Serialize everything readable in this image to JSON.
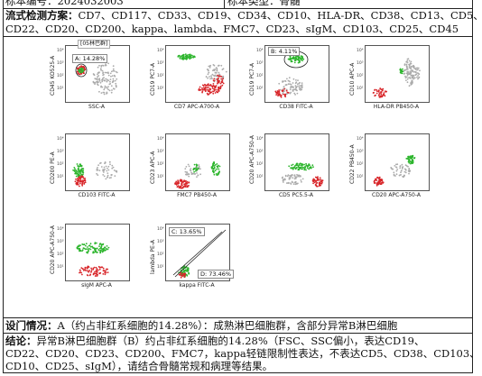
{
  "header": {
    "sample_no_label": "标本编号：",
    "sample_no_value": "2024032003",
    "sample_type_label": "标本类型：",
    "sample_type_value": "骨髓"
  },
  "markers": {
    "label": "流式检测方案：",
    "line1": "CD7、CD117、CD33、CD19、CD34、CD10、HLA-DR、CD38、CD13、CD5、",
    "line2": "CD22、CD20、CD200、kappa、lambda、FMC7、CD23、sIgM、CD103、CD25、CD45"
  },
  "plots": [
    {
      "id": "p1",
      "x": "SSC-A",
      "y": "CD45 KO525-A",
      "gate": "A: 14.28%",
      "tag": "[05林巴群]"
    },
    {
      "id": "p2",
      "x": "CD7 APC-A700-A",
      "y": "CD19 PC7-A"
    },
    {
      "id": "p3",
      "x": "CD38 FITC-A",
      "y": "CD19 PC7-A",
      "gate": "B: 4.11%"
    },
    {
      "id": "p4",
      "x": "HLA-DR PB450-A",
      "y": "CD10 APC-A"
    },
    {
      "id": "p5",
      "x": "CD103 FITC-A",
      "y": "CD200 PE-A"
    },
    {
      "id": "p6",
      "x": "FMC7 PB450-A",
      "y": "CD23 APC-A"
    },
    {
      "id": "p7",
      "x": "CD5 PC5.5-A",
      "y": "CD20 APC-A750-A"
    },
    {
      "id": "p8",
      "x": "CD20 APC-A750-A",
      "y": "CD22 PB450-A"
    },
    {
      "id": "p9",
      "x": "sIgM APC-A",
      "y": "CD20 APC-A750-A"
    },
    {
      "id": "p10",
      "x": "kappa FITC-A",
      "y": "lambda PE-A",
      "gate_c": "C: 13.65%",
      "gate_d": "D: 73.46%"
    }
  ],
  "ticks": [
    "10⁴",
    "10³",
    "10²",
    "10¹"
  ],
  "diagnosis": {
    "label": "设门情况：",
    "text": "A（约占非红系细胞的14.28%）：成熟淋巴细胞群，含部分异常B淋巴细胞"
  },
  "conclusion": {
    "label": "结论：",
    "line1": "异常B淋巴细胞群（B）约占非红系细胞的14.28%（FSC、SSC偏小，表达CD19、",
    "line2": "CD22、CD20、CD23、CD200、FMC7，kappa轻链限制性表达，不表达CD5、CD38、CD103、",
    "line3": "CD10、CD25、sIgM），请结合骨髓常规和病理等结果。"
  },
  "colors": {
    "green": "#2db52d",
    "red": "#d8262a",
    "gray": "#aaaaaa"
  }
}
